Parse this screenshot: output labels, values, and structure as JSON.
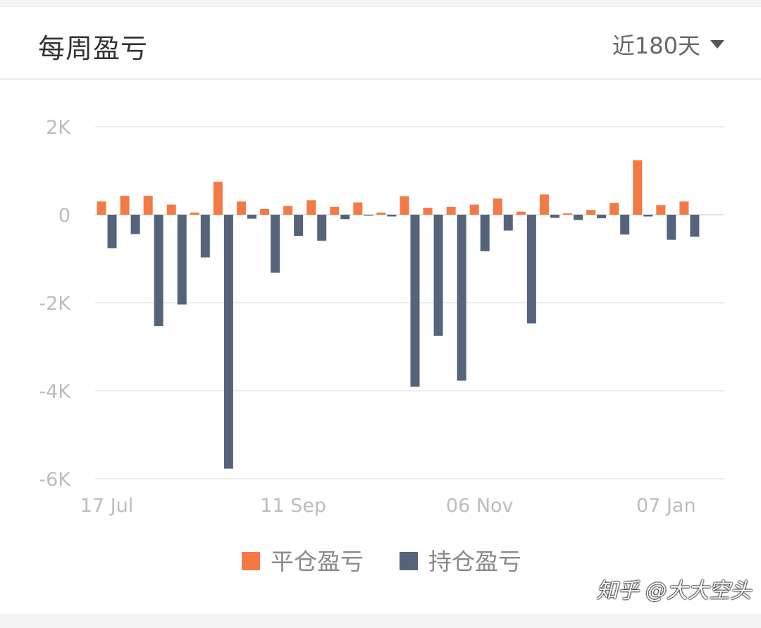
{
  "header": {
    "title": "每周盈亏",
    "range_label": "近180天"
  },
  "colors": {
    "closed_pnl": "#f47a45",
    "open_pnl": "#56647b",
    "grid": "#eeeeee",
    "axis_text": "#bdbdbd"
  },
  "icons": {
    "range_dropdown": "caret-down-icon"
  },
  "watermark": "知乎 @大大空头",
  "chart_data": {
    "type": "bar",
    "yticks": [
      "2K",
      "0",
      "-2K",
      "-4K",
      "-6K"
    ],
    "ylim": [
      -6000,
      2000
    ],
    "xtick_labels": [
      "17 Jul",
      "11 Sep",
      "06 Nov",
      "07 Jan"
    ],
    "xtick_week_index": [
      0,
      8,
      16,
      24
    ],
    "weeks": 27,
    "legend": [
      "平仓盈亏",
      "持仓盈亏"
    ],
    "series": [
      {
        "name": "平仓盈亏",
        "values": [
          300,
          430,
          430,
          230,
          50,
          750,
          300,
          130,
          200,
          330,
          180,
          280,
          50,
          420,
          160,
          180,
          230,
          370,
          70,
          460,
          30,
          110,
          270,
          1240,
          220,
          300,
          0
        ]
      },
      {
        "name": "持仓盈亏",
        "values": [
          -760,
          -440,
          -2530,
          -2040,
          -970,
          -5770,
          -90,
          -1320,
          -480,
          -590,
          -100,
          -20,
          -40,
          -3910,
          -2750,
          -3770,
          -830,
          -360,
          -2470,
          -70,
          -120,
          -80,
          -450,
          -40,
          -570,
          -500,
          0
        ]
      }
    ]
  }
}
